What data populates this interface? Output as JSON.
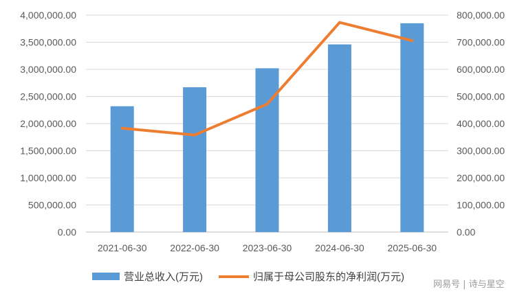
{
  "chart_data": {
    "type": "bar+line",
    "categories": [
      "2021-06-30",
      "2022-06-30",
      "2023-06-30",
      "2024-06-30",
      "2025-06-30"
    ],
    "series": [
      {
        "name": "营业总收入(万元)",
        "type": "bar",
        "axis": "left",
        "color": "#5B9BD5",
        "values": [
          2320000,
          2670000,
          3020000,
          3460000,
          3850000
        ]
      },
      {
        "name": "归属于母公司股东的净利润(万元)",
        "type": "line",
        "axis": "right",
        "color": "#ED7D31",
        "values": [
          383000,
          358000,
          472000,
          773000,
          706000
        ]
      }
    ],
    "y_left": {
      "lim": [
        0,
        4000000
      ],
      "ticks": [
        "0.00",
        "500,000.00",
        "1,000,000.00",
        "1,500,000.00",
        "2,000,000.00",
        "2,500,000.00",
        "3,000,000.00",
        "3,500,000.00",
        "4,000,000.00"
      ]
    },
    "y_right": {
      "lim": [
        0,
        800000
      ],
      "ticks": [
        "0.00",
        "100,000.00",
        "200,000.00",
        "300,000.00",
        "400,000.00",
        "500,000.00",
        "600,000.00",
        "700,000.00",
        "800,000.00"
      ]
    },
    "grid": true,
    "legend": "bottom"
  },
  "watermark": "网易号 | 诗与星空"
}
